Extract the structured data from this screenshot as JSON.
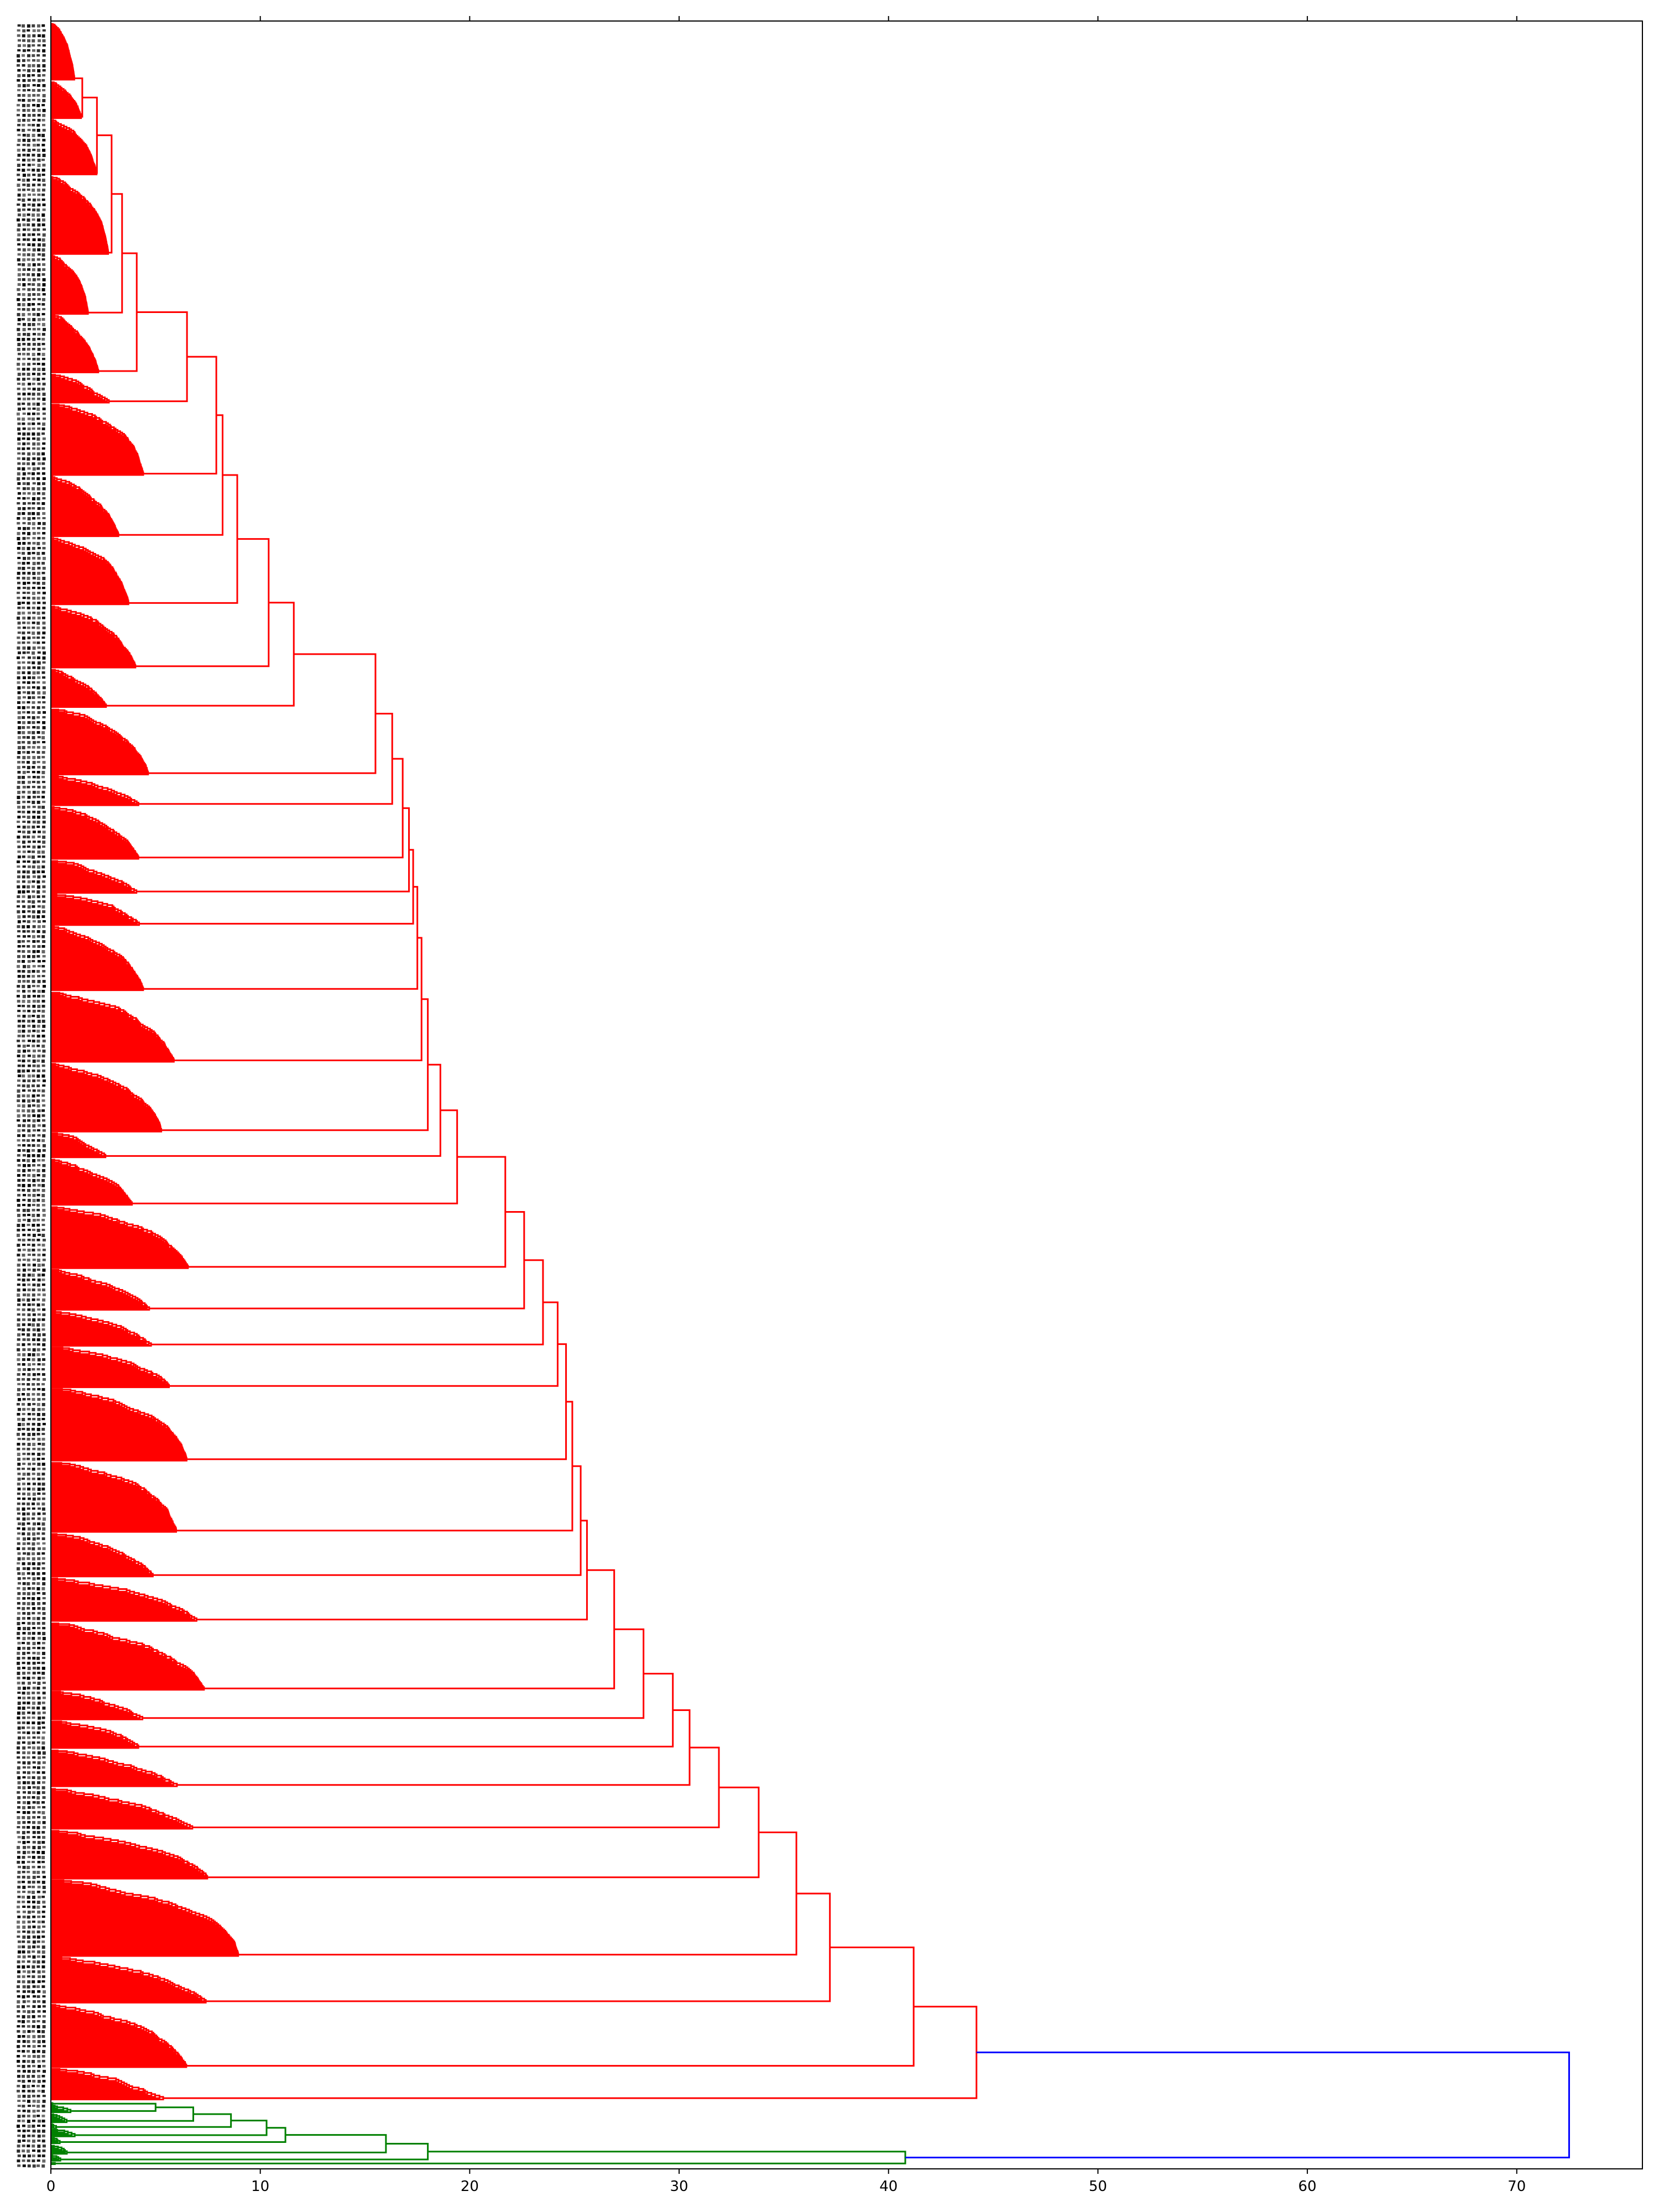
{
  "chart_data": {
    "type": "dendrogram",
    "orientation": "horizontal",
    "title": "",
    "xlabel": "",
    "ylabel": "",
    "xlim": [
      0,
      76
    ],
    "x_ticks": [
      0,
      10,
      20,
      30,
      40,
      50,
      60,
      70
    ],
    "x_tick_labels": [
      "0",
      "10",
      "20",
      "30",
      "40",
      "50",
      "60",
      "70"
    ],
    "grid": false,
    "leaf_labels_legible": false,
    "colors": {
      "cluster_main": "#ff0000",
      "cluster_small": "#008000",
      "root_link": "#0000ff",
      "axis": "#000000"
    },
    "clusters": [
      {
        "name": "",
        "color": "#ff0000",
        "approx_leaf_share": 0.97,
        "merge_heights": [
          1.5,
          2.2,
          2.9,
          3.4,
          4.1,
          6.5,
          7.9,
          8.2,
          8.9,
          10.4,
          11.6,
          15.5,
          16.3,
          16.8,
          17.1,
          17.3,
          17.5,
          17.7,
          18.0,
          18.6,
          19.4,
          21.7,
          22.6,
          23.5,
          24.2,
          24.6,
          24.9,
          25.3,
          25.6,
          26.9,
          28.3,
          29.7,
          30.5,
          31.9,
          33.8,
          35.6,
          37.2,
          41.2,
          44.2
        ]
      },
      {
        "name": "",
        "color": "#008000",
        "approx_leaf_share": 0.03,
        "merge_heights": [
          5.0,
          6.8,
          8.6,
          10.3,
          11.2,
          16.0,
          18.0,
          40.8
        ]
      }
    ],
    "root_merge": {
      "height": 72.5,
      "color": "#0000ff"
    }
  }
}
